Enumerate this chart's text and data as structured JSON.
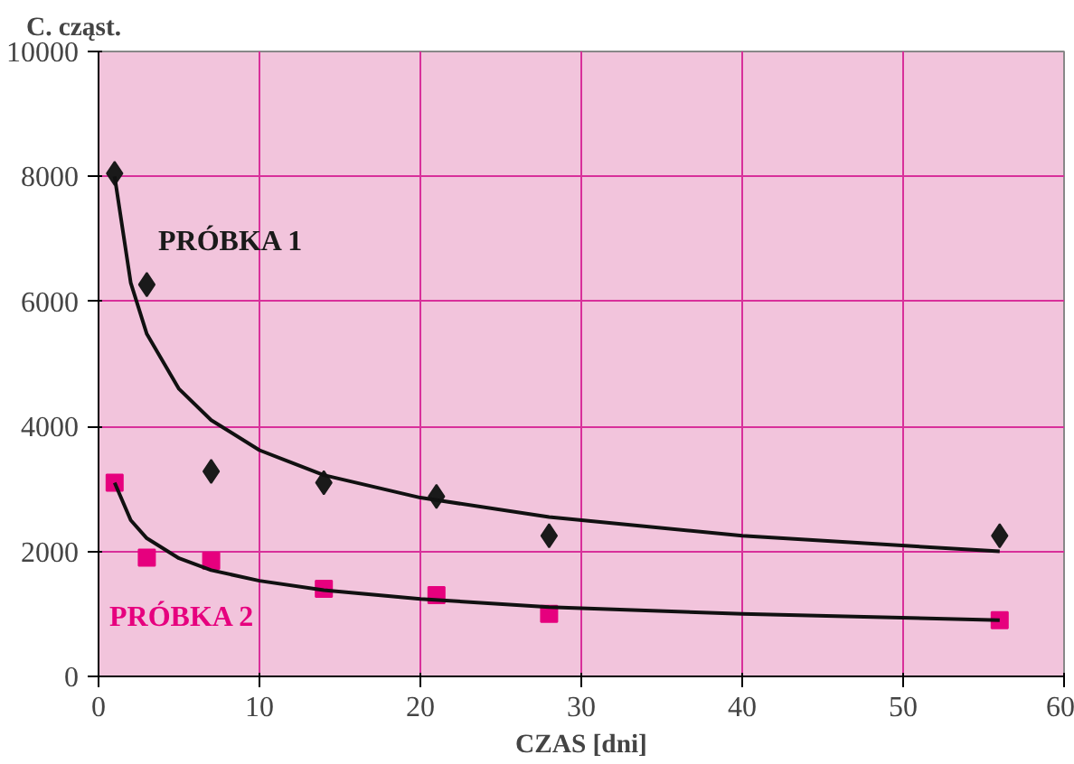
{
  "chart_data": {
    "type": "scatter",
    "ylabel": "C. cząst.",
    "xlabel": "CZAS [dni]",
    "x": [
      1,
      3,
      7,
      14,
      21,
      28,
      56
    ],
    "xlim": [
      0,
      60
    ],
    "xticks": [
      0,
      10,
      20,
      30,
      40,
      50,
      60
    ],
    "ylim": [
      0,
      10000
    ],
    "yticks": [
      0,
      2000,
      4000,
      6000,
      8000,
      10000
    ],
    "grid": true,
    "series": [
      {
        "name": "PRÓBKA 1",
        "color": "#1a1a1a",
        "marker": "diamond",
        "values": [
          8050,
          6270,
          3280,
          3100,
          2880,
          2250,
          2250
        ]
      },
      {
        "name": "PRÓBKA 2",
        "color": "#e6007e",
        "marker": "square",
        "values": [
          3100,
          1900,
          1850,
          1400,
          1300,
          1000,
          900
        ]
      },
      {
        "type": "line",
        "color": "#111111",
        "marker": "none",
        "x": [
          1,
          2,
          3,
          5,
          7,
          10,
          14,
          20,
          28,
          40,
          56
        ],
        "values": [
          8000,
          6300,
          5480,
          4600,
          4100,
          3620,
          3220,
          2860,
          2550,
          2250,
          2000
        ]
      },
      {
        "type": "line",
        "color": "#111111",
        "marker": "none",
        "x": [
          1,
          2,
          3,
          5,
          7,
          10,
          14,
          20,
          28,
          40,
          56
        ],
        "values": [
          3100,
          2500,
          2210,
          1890,
          1700,
          1530,
          1380,
          1240,
          1110,
          1000,
          900
        ]
      }
    ]
  }
}
